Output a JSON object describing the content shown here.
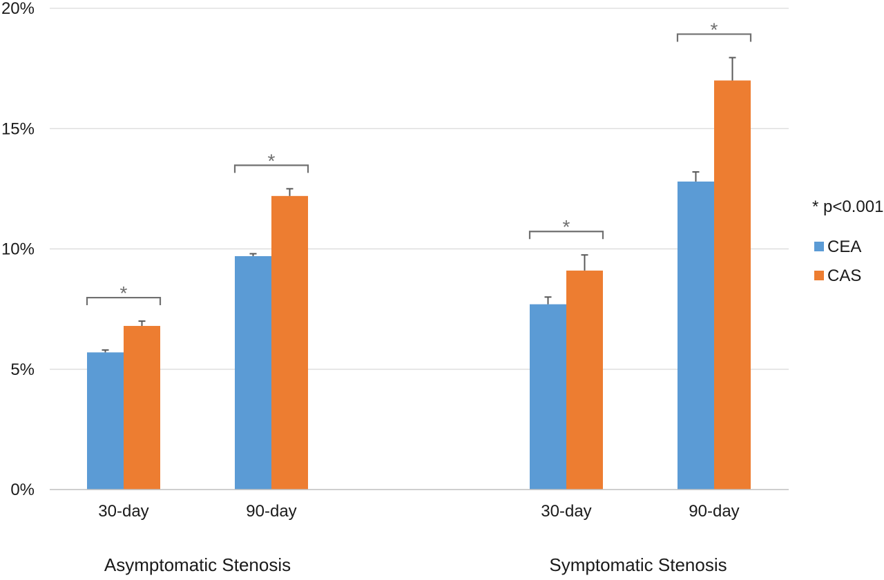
{
  "chart_data": {
    "type": "bar",
    "title": "",
    "xlabel": "",
    "ylabel": "",
    "ylim": [
      0,
      20
    ],
    "yticks": [
      0,
      5,
      10,
      15,
      20
    ],
    "ytick_labels": [
      "0%",
      "5%",
      "10%",
      "15%",
      "20%"
    ],
    "grid": true,
    "legend_position": "right",
    "groups": [
      {
        "label": "Asymptomatic Stenosis",
        "categories": [
          "30-day",
          "90-day"
        ]
      },
      {
        "label": "Symptomatic Stenosis",
        "categories": [
          "30-day",
          "90-day"
        ]
      }
    ],
    "categories": [
      "30-day",
      "90-day",
      "30-day",
      "90-day"
    ],
    "series": [
      {
        "name": "CEA",
        "color": "#5b9bd5",
        "values": [
          5.7,
          9.7,
          7.7,
          12.8
        ],
        "error_upper": [
          0.1,
          0.1,
          0.3,
          0.4
        ]
      },
      {
        "name": "CAS",
        "color": "#ed7d31",
        "values": [
          6.8,
          12.2,
          9.1,
          17.0
        ],
        "error_upper": [
          0.2,
          0.3,
          0.65,
          0.95
        ]
      }
    ],
    "significance": {
      "marker": "*",
      "note": "* p<0.001",
      "categories_flagged": [
        true,
        true,
        true,
        true
      ]
    }
  }
}
